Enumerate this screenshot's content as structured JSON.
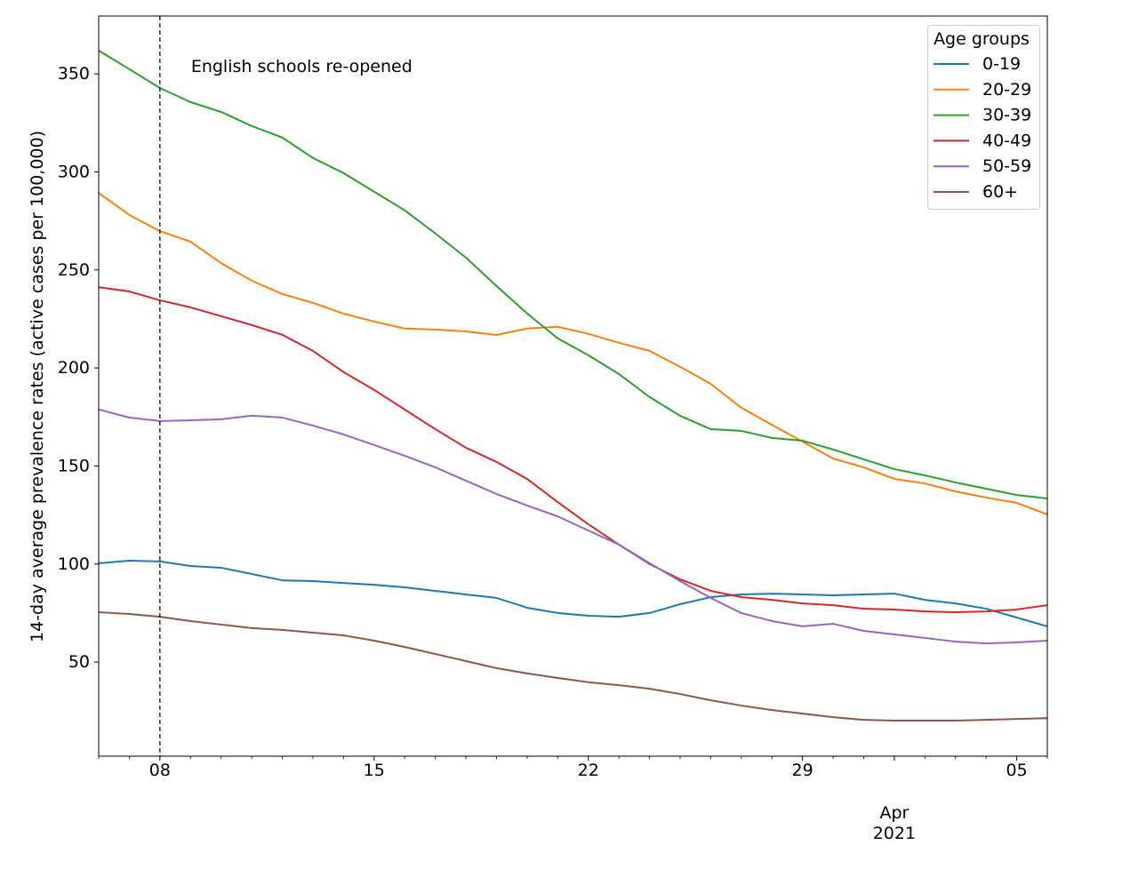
{
  "chart_data": {
    "type": "line",
    "ylabel": "14-day average prevalence rates (active cases per 100,000)",
    "x": [
      "2021-03-06",
      "2021-03-07",
      "2021-03-08",
      "2021-03-09",
      "2021-03-10",
      "2021-03-11",
      "2021-03-12",
      "2021-03-13",
      "2021-03-14",
      "2021-03-15",
      "2021-03-16",
      "2021-03-17",
      "2021-03-18",
      "2021-03-19",
      "2021-03-20",
      "2021-03-21",
      "2021-03-22",
      "2021-03-23",
      "2021-03-24",
      "2021-03-25",
      "2021-03-26",
      "2021-03-27",
      "2021-03-28",
      "2021-03-29",
      "2021-03-30",
      "2021-03-31",
      "2021-04-01",
      "2021-04-02",
      "2021-04-03",
      "2021-04-04",
      "2021-04-05",
      "2021-04-06"
    ],
    "xlim": [
      "2021-03-06",
      "2021-04-06"
    ],
    "ylim": [
      2,
      379.5
    ],
    "yticks": [
      50,
      100,
      150,
      200,
      250,
      300,
      350
    ],
    "xticks": [
      {
        "date": "2021-03-08",
        "label": "08"
      },
      {
        "date": "2021-03-15",
        "label": "15"
      },
      {
        "date": "2021-03-22",
        "label": "22"
      },
      {
        "date": "2021-03-29",
        "label": "29"
      },
      {
        "date": "2021-04-05",
        "label": "05"
      }
    ],
    "month_label": {
      "date": "2021-04-01",
      "lines": [
        "Apr",
        "2021"
      ]
    },
    "grid": false,
    "legend": {
      "title": "Age groups",
      "position": "top-right"
    },
    "series": [
      {
        "name": "0-19",
        "color": "#1f77b4",
        "values": [
          100.4,
          101.7,
          101.3,
          99.0,
          98.1,
          94.9,
          91.7,
          91.3,
          90.3,
          89.4,
          88.1,
          86.3,
          84.5,
          82.7,
          77.7,
          75.0,
          73.6,
          73.1,
          75.0,
          79.5,
          83.1,
          84.5,
          84.9,
          84.5,
          84.0,
          84.5,
          84.9,
          81.7,
          79.9,
          77.2,
          72.7,
          68.2
        ]
      },
      {
        "name": "20-29",
        "color": "#ff7f0e",
        "values": [
          289.3,
          278.0,
          269.8,
          264.4,
          253.5,
          244.5,
          237.7,
          233.2,
          227.7,
          223.7,
          220.1,
          219.6,
          218.6,
          216.8,
          220.1,
          221.0,
          217.4,
          212.8,
          208.7,
          200.6,
          191.9,
          179.7,
          171.0,
          162.4,
          153.8,
          149.3,
          143.4,
          141.1,
          137.0,
          133.9,
          131.2,
          125.3
        ]
      },
      {
        "name": "30-39",
        "color": "#2ca02c",
        "values": [
          361.9,
          352.4,
          342.8,
          335.6,
          330.6,
          323.4,
          317.5,
          307.1,
          299.4,
          289.9,
          280.4,
          268.6,
          256.3,
          241.8,
          227.8,
          215.1,
          206.5,
          196.9,
          185.2,
          175.6,
          168.8,
          167.9,
          164.3,
          162.9,
          158.4,
          153.4,
          148.4,
          145.2,
          141.6,
          138.4,
          135.2,
          133.4
        ]
      },
      {
        "name": "40-49",
        "color": "#d62728",
        "values": [
          241.2,
          239.0,
          234.5,
          230.9,
          226.4,
          221.9,
          216.9,
          208.7,
          197.9,
          188.8,
          178.8,
          168.8,
          159.3,
          152.1,
          143.4,
          131.6,
          120.3,
          109.9,
          100.0,
          92.2,
          86.3,
          83.1,
          81.7,
          79.9,
          79.0,
          77.2,
          76.8,
          75.8,
          75.4,
          75.8,
          76.8,
          79.0
        ]
      },
      {
        "name": "50-59",
        "color": "#9467bd",
        "values": [
          178.8,
          174.7,
          172.9,
          173.3,
          173.8,
          175.6,
          174.7,
          170.6,
          166.1,
          160.7,
          155.2,
          149.3,
          142.5,
          135.7,
          129.8,
          124.3,
          117.1,
          109.9,
          100.4,
          91.3,
          82.7,
          75.0,
          70.9,
          68.2,
          69.5,
          65.9,
          64.1,
          62.3,
          60.4,
          59.5,
          60.0,
          60.9
        ]
      },
      {
        "name": "60+",
        "color": "#8c564b",
        "values": [
          75.4,
          74.5,
          73.1,
          70.9,
          69.1,
          67.3,
          66.4,
          65.0,
          63.6,
          60.9,
          57.7,
          54.1,
          50.5,
          46.9,
          44.2,
          41.9,
          39.7,
          38.2,
          36.4,
          33.7,
          30.5,
          27.8,
          25.5,
          23.7,
          21.9,
          20.5,
          20.1,
          20.1,
          20.1,
          20.5,
          21.0,
          21.4
        ]
      }
    ],
    "annotations": [
      {
        "text": "English schools re-opened",
        "date": "2021-03-08",
        "line_style": "dashed",
        "line_color": "#000000"
      }
    ]
  }
}
